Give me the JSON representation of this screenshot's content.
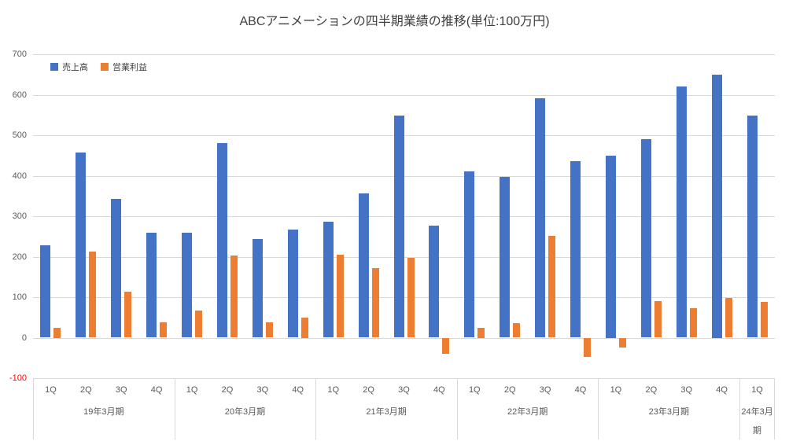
{
  "chart_data": {
    "type": "bar",
    "title": "ABCアニメーションの四半期業績の推移(単位:100万円)",
    "categories": [
      "1Q",
      "2Q",
      "3Q",
      "4Q",
      "1Q",
      "2Q",
      "3Q",
      "4Q",
      "1Q",
      "2Q",
      "3Q",
      "4Q",
      "1Q",
      "2Q",
      "3Q",
      "4Q",
      "1Q",
      "2Q",
      "3Q",
      "4Q",
      "1Q"
    ],
    "groups": [
      {
        "label": "19年3月期",
        "count": 4
      },
      {
        "label": "20年3月期",
        "count": 4
      },
      {
        "label": "21年3月期",
        "count": 4
      },
      {
        "label": "22年3月期",
        "count": 4
      },
      {
        "label": "23年3月期",
        "count": 4
      },
      {
        "label": "24年3月期",
        "count": 1
      }
    ],
    "series": [
      {
        "name": "売上高",
        "color": "#4472C4",
        "values": [
          228,
          457,
          343,
          260,
          260,
          480,
          243,
          267,
          287,
          357,
          548,
          277,
          410,
          398,
          592,
          435,
          450,
          491,
          621,
          650,
          548
        ]
      },
      {
        "name": "営業利益",
        "color": "#ED7D31",
        "values": [
          25,
          212,
          113,
          38,
          67,
          202,
          37,
          50,
          205,
          172,
          197,
          -40,
          25,
          35,
          252,
          -48,
          -25,
          90,
          72,
          98,
          88
        ]
      }
    ],
    "ylim": [
      -100,
      700
    ],
    "yticks": [
      700,
      600,
      500,
      400,
      300,
      200,
      100,
      0,
      -100
    ],
    "grid": true,
    "legend_position": "top-left",
    "colors": {
      "grid": "#d9d9d9",
      "tick_text": "#595959",
      "negative_tick_text": "#FF0000",
      "title_text": "#404040"
    }
  }
}
